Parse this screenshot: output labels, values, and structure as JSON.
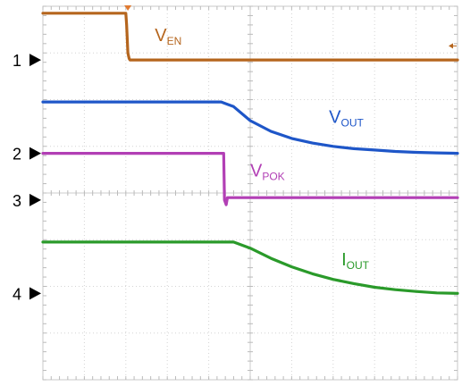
{
  "chart_data": {
    "type": "line",
    "title": "",
    "xlabel": "",
    "ylabel": "",
    "grid": true,
    "grid_divisions": {
      "x": 10,
      "y": 8
    },
    "xlim": [
      0,
      10
    ],
    "ylim": [
      0,
      8
    ],
    "trigger_marker": {
      "x": 2.05
    },
    "channel_markers": [
      {
        "label": "1",
        "y": 6.85
      },
      {
        "label": "2",
        "y": 4.85
      },
      {
        "label": "3",
        "y": 3.85
      },
      {
        "label": "4",
        "y": 1.85
      }
    ],
    "series": [
      {
        "channel": "1",
        "text": "V",
        "sub": "EN",
        "color": "#b5651d",
        "label_pos": {
          "x": 2.7,
          "y": 7.25
        },
        "x": [
          0,
          2.0,
          2.02,
          2.05,
          2.08,
          2.1,
          10
        ],
        "y": [
          7.85,
          7.85,
          7.6,
          7.0,
          6.88,
          6.85,
          6.85
        ]
      },
      {
        "channel": "none",
        "text": "V",
        "sub": "OUT",
        "color": "#1e56c8",
        "label_pos": {
          "x": 6.9,
          "y": 5.5
        },
        "x": [
          0,
          4.3,
          4.6,
          5.0,
          5.5,
          6.0,
          6.5,
          7.0,
          7.5,
          8.0,
          8.5,
          9.0,
          9.5,
          10
        ],
        "y": [
          5.95,
          5.95,
          5.85,
          5.55,
          5.32,
          5.17,
          5.07,
          5.0,
          4.95,
          4.92,
          4.89,
          4.87,
          4.86,
          4.85
        ]
      },
      {
        "channel": "2",
        "text": "V",
        "sub": "POK",
        "color": "#b23fb5",
        "label_pos": {
          "x": 5.0,
          "y": 4.35
        },
        "x": [
          0,
          4.36,
          4.38,
          4.42,
          4.45,
          10
        ],
        "y": [
          4.85,
          4.85,
          3.85,
          3.75,
          3.9,
          3.9
        ]
      },
      {
        "channel": "none",
        "text": "I",
        "sub": "OUT",
        "color": "#2a9a2a",
        "label_pos": {
          "x": 7.2,
          "y": 2.45
        },
        "x": [
          0,
          4.6,
          5.0,
          5.5,
          6.0,
          6.5,
          7.0,
          7.5,
          8.0,
          8.5,
          9.0,
          9.5,
          10
        ],
        "y": [
          2.95,
          2.95,
          2.82,
          2.6,
          2.42,
          2.27,
          2.15,
          2.06,
          1.98,
          1.93,
          1.89,
          1.86,
          1.85
        ]
      }
    ]
  }
}
